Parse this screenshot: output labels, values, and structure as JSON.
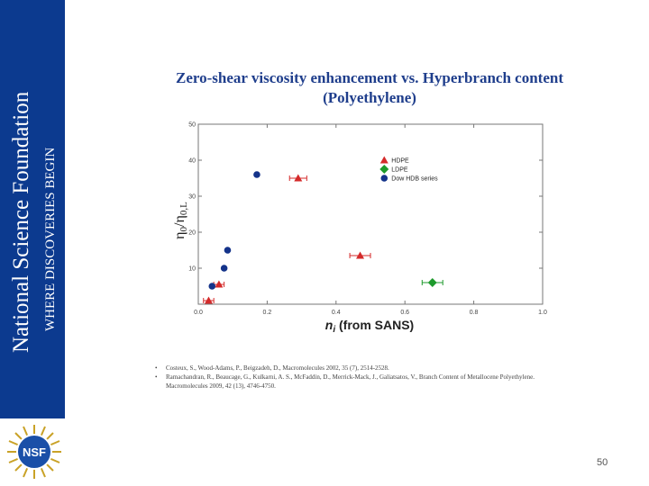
{
  "sidebar": {
    "org_name": "National Science Foundation",
    "tagline": "WHERE DISCOVERIES BEGIN",
    "logo_text": "NSF",
    "color": "#0c3a8f"
  },
  "slide": {
    "title_line1": "Zero-shear viscosity enhancement vs. Hyperbranch content",
    "title_line2": "(Polyethylene)",
    "page_number": "50"
  },
  "references": [
    "Costeux, S., Wood-Adams, P., Beigzadeh, D., Macromolecules 2002, 35 (7), 2514-2528.",
    "Ramachandran, R., Beaucage, G., Kulkarni, A. S., McFaddin, D., Merrick-Mack, J., Galiatsatos, V., Branch Content of Metallocene Polyethylene. Macromolecules 2009, 42 (13), 4746-4750."
  ],
  "chart_data": {
    "type": "scatter",
    "title": "",
    "xlabel": "n_i (from SANS)",
    "ylabel": "η0/η0,L",
    "xlim": [
      0.0,
      1.0
    ],
    "ylim": [
      0,
      50
    ],
    "xticks": [
      "0.0",
      "0.2",
      "0.4",
      "0.6",
      "0.8",
      "1.0"
    ],
    "yticks": [
      "10",
      "20",
      "30",
      "40",
      "50"
    ],
    "grid": false,
    "legend_position": "upper-right",
    "series": [
      {
        "name": "HDPE",
        "marker": "triangle",
        "color": "#d42a2a",
        "points": [
          {
            "x": 0.03,
            "y": 1,
            "xerr": 0.015
          },
          {
            "x": 0.06,
            "y": 5.5,
            "xerr": 0.015
          },
          {
            "x": 0.29,
            "y": 35,
            "xerr": 0.025
          },
          {
            "x": 0.47,
            "y": 13.5,
            "xerr": 0.03
          }
        ]
      },
      {
        "name": "LDPE",
        "marker": "diamond",
        "color": "#1e9a2c",
        "points": [
          {
            "x": 0.68,
            "y": 6,
            "xerr": 0.03
          }
        ]
      },
      {
        "name": "Dow HDB series",
        "marker": "circle",
        "color": "#14338a",
        "points": [
          {
            "x": 0.04,
            "y": 5,
            "xerr": 0
          },
          {
            "x": 0.075,
            "y": 10,
            "xerr": 0
          },
          {
            "x": 0.085,
            "y": 15,
            "xerr": 0
          },
          {
            "x": 0.17,
            "y": 36,
            "xerr": 0
          }
        ]
      }
    ]
  }
}
